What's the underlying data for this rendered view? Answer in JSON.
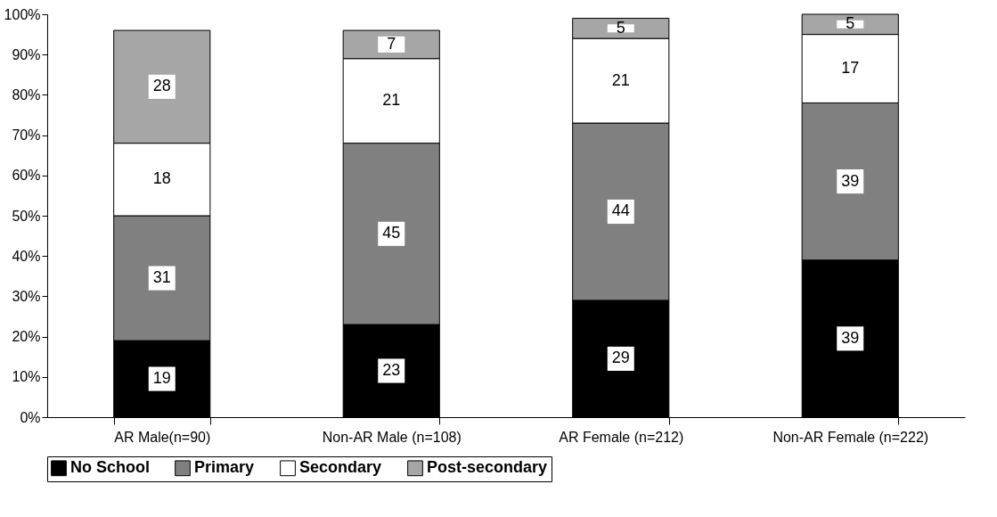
{
  "chart_data": {
    "type": "bar",
    "stacked": true,
    "categories": [
      "AR Male(n=90)",
      "Non-AR Male (n=108)",
      "AR Female (n=212)",
      "Non-AR Female (n=222)"
    ],
    "series": [
      {
        "name": "No School",
        "color": "#000000",
        "values": [
          19,
          23,
          29,
          39
        ]
      },
      {
        "name": "Primary",
        "color": "#808080",
        "values": [
          31,
          45,
          44,
          39
        ]
      },
      {
        "name": "Secondary",
        "color": "#ffffff",
        "values": [
          18,
          21,
          21,
          17
        ]
      },
      {
        "name": "Post-secondary",
        "color": "#a6a6a6",
        "values": [
          28,
          7,
          5,
          5
        ]
      }
    ],
    "data_labels": true,
    "ylim": [
      0,
      100
    ],
    "yticks": [
      {
        "value": 0,
        "label": "0%"
      },
      {
        "value": 10,
        "label": "10%"
      },
      {
        "value": 20,
        "label": "20%"
      },
      {
        "value": 30,
        "label": "30%"
      },
      {
        "value": 40,
        "label": "40%"
      },
      {
        "value": 50,
        "label": "50%"
      },
      {
        "value": 60,
        "label": "60%"
      },
      {
        "value": 70,
        "label": "70%"
      },
      {
        "value": 80,
        "label": "80%"
      },
      {
        "value": 90,
        "label": "90%"
      },
      {
        "value": 100,
        "label": "100%"
      }
    ],
    "grid": false,
    "legend": "bottom"
  }
}
